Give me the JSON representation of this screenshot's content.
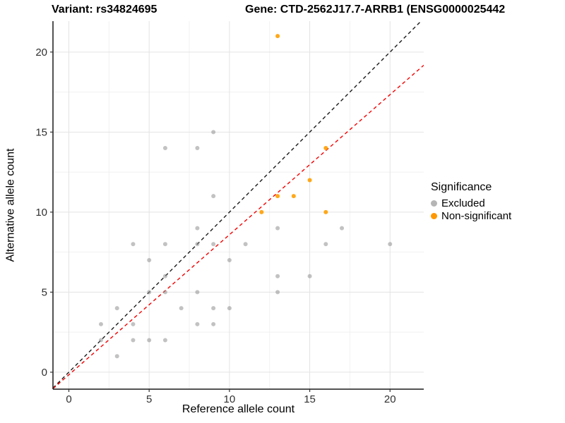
{
  "chart_data": {
    "type": "scatter",
    "title_left": "Variant: rs34824695",
    "title_right": "Gene: CTD-2562J17.7-ARRB1 (ENSG0000025442",
    "xlabel": "Reference allele count",
    "ylabel": "Alternative allele count",
    "xlim": [
      -0.99,
      22.1
    ],
    "ylim": [
      -1.06,
      21.93
    ],
    "x_ticks": [
      0,
      5,
      10,
      15,
      20
    ],
    "y_ticks": [
      0,
      5,
      10,
      15,
      20
    ],
    "x_minor_ticks": [
      2.5,
      7.5,
      12.5,
      17.5
    ],
    "y_minor_ticks": [
      2.5,
      7.5,
      12.5,
      17.5
    ],
    "grid": {
      "on": true,
      "major_color": "#e3e3e3",
      "minor_color": "#f1f1f1"
    },
    "axis_color": "#1a1a1a",
    "tick_label_color": "#303030",
    "series": [
      {
        "name": "Excluded",
        "color": "#8f8f8f",
        "fill_opacity": 0.55,
        "points": [
          [
            2,
            2
          ],
          [
            2,
            3
          ],
          [
            3,
            1
          ],
          [
            3,
            4
          ],
          [
            4,
            2
          ],
          [
            4,
            3
          ],
          [
            4,
            8
          ],
          [
            5,
            2
          ],
          [
            5,
            5
          ],
          [
            5,
            7
          ],
          [
            6,
            2
          ],
          [
            6,
            5
          ],
          [
            6,
            6
          ],
          [
            6,
            8
          ],
          [
            6,
            14
          ],
          [
            7,
            4
          ],
          [
            8,
            3
          ],
          [
            8,
            5
          ],
          [
            8,
            8
          ],
          [
            8,
            9
          ],
          [
            8,
            14
          ],
          [
            9,
            3
          ],
          [
            9,
            4
          ],
          [
            9,
            8
          ],
          [
            9,
            11
          ],
          [
            9,
            15
          ],
          [
            10,
            4
          ],
          [
            10,
            7
          ],
          [
            11,
            8
          ],
          [
            13,
            5
          ],
          [
            13,
            6
          ],
          [
            13,
            9
          ],
          [
            15,
            6
          ],
          [
            16,
            8
          ],
          [
            17,
            9
          ],
          [
            20,
            8
          ]
        ]
      },
      {
        "name": "Non-significant",
        "color": "#ff9e00",
        "fill_opacity": 0.9,
        "points": [
          [
            12,
            10
          ],
          [
            13,
            11
          ],
          [
            13,
            21
          ],
          [
            14,
            11
          ],
          [
            15,
            12
          ],
          [
            16,
            10
          ],
          [
            16,
            14
          ]
        ]
      }
    ],
    "lines": [
      {
        "name": "identity",
        "color": "#1a1a1a",
        "slope": 1,
        "intercept": 0,
        "dash": "5,4"
      },
      {
        "name": "regression",
        "color": "#f50000",
        "slope": 0.875,
        "intercept": -0.16,
        "dash": "5,4"
      }
    ],
    "legend": {
      "title": "Significance",
      "position": "right",
      "entries": [
        {
          "label": "Excluded",
          "color": "#b5b5b5"
        },
        {
          "label": "Non-significant",
          "color": "#ff9800"
        }
      ]
    }
  }
}
